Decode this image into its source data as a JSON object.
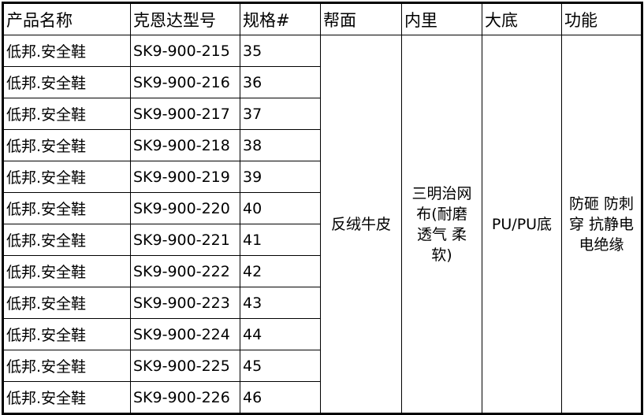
{
  "headers": [
    "产品名称",
    "克恩达型号",
    "规格#",
    "帮面",
    "内里",
    "大底",
    "功能"
  ],
  "rows": [
    {
      "name": "低邦.安全鞋",
      "model": "SK9-900-215",
      "size": "35"
    },
    {
      "name": "低邦.安全鞋",
      "model": "SK9-900-216",
      "size": "36"
    },
    {
      "name": "低邦.安全鞋",
      "model": "SK9-900-217",
      "size": "37"
    },
    {
      "name": "低邦.安全鞋",
      "model": "SK9-900-218",
      "size": "38"
    },
    {
      "name": "低邦.安全鞋",
      "model": "SK9-900-219",
      "size": "39"
    },
    {
      "name": "低邦.安全鞋",
      "model": "SK9-900-220",
      "size": "40"
    },
    {
      "name": "低邦.安全鞋",
      "model": "SK9-900-221",
      "size": "41"
    },
    {
      "name": "低邦.安全鞋",
      "model": "SK9-900-222",
      "size": "42"
    },
    {
      "name": "低邦.安全鞋",
      "model": "SK9-900-223",
      "size": "43"
    },
    {
      "name": "低邦.安全鞋",
      "model": "SK9-900-224",
      "size": "44"
    },
    {
      "name": "低邦.安全鞋",
      "model": "SK9-900-225",
      "size": "45"
    },
    {
      "name": "低邦.安全鞋",
      "model": "SK9-900-226",
      "size": "46"
    }
  ],
  "shared": {
    "upper": [
      "反绒牛皮"
    ],
    "lining": [
      "三明治网",
      "布(耐磨",
      "透气 柔",
      "软)"
    ],
    "sole": [
      "PU/PU底"
    ],
    "function": [
      "防砸 防刺",
      "穿 抗静电",
      "电绝缘"
    ]
  }
}
